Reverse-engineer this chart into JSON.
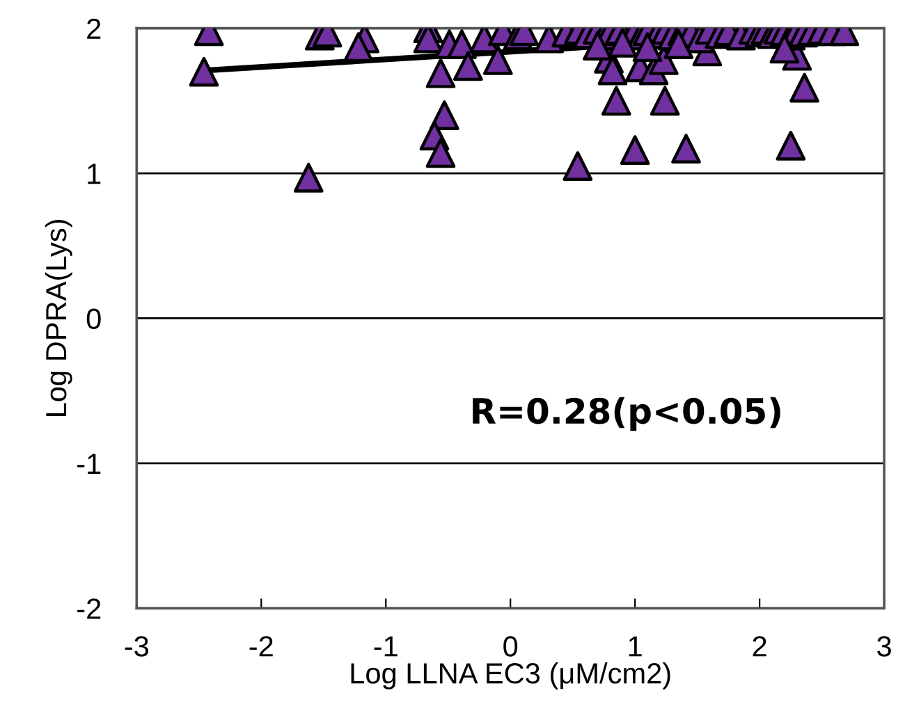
{
  "chart_data": {
    "type": "scatter",
    "xlabel": "Log LLNA EC3 (μM/cm2)",
    "ylabel": "Log DPRA(Lys)",
    "xlim": [
      -3,
      3
    ],
    "ylim": [
      -2,
      2
    ],
    "xticks": [
      -3,
      -2,
      -1,
      0,
      1,
      2,
      3
    ],
    "yticks": [
      -2,
      -1,
      0,
      1,
      2
    ],
    "grid": "y",
    "annotations": [
      "R=0.28(p<0.05)"
    ],
    "series": [
      {
        "color": "#7030a0",
        "marker": "triangle",
        "x": [
          -2.42,
          -2.46,
          -1.53,
          -1.47,
          -1.17,
          -1.22,
          -1.62,
          -0.66,
          -0.66,
          -0.49,
          -0.56,
          -0.53,
          -0.61,
          -0.56,
          -0.39,
          -0.34,
          -0.21,
          -0.1,
          -0.06,
          0.06,
          0.11,
          0.31,
          0.79,
          0.82,
          1.04,
          1.15,
          1.23,
          0.85,
          1.24,
          0.54,
          1.0,
          1.41,
          2.25,
          2.36,
          2.3,
          1.58,
          0.45,
          0.55,
          0.62,
          0.7,
          0.75,
          0.8,
          0.88,
          1.0,
          1.05,
          1.1,
          1.18,
          1.25,
          1.3,
          1.38,
          1.45,
          1.52,
          1.6,
          1.68,
          1.75,
          1.85,
          1.95,
          2.0,
          2.05,
          2.1,
          2.15,
          2.2,
          2.25,
          2.3,
          2.35,
          2.42,
          2.5,
          2.58,
          2.68,
          0.7,
          0.9,
          1.1,
          1.35,
          2.2
        ],
        "values": [
          1.98,
          1.7,
          1.95,
          1.97,
          1.93,
          1.87,
          0.97,
          2.0,
          1.93,
          1.89,
          1.69,
          1.4,
          1.26,
          1.14,
          1.89,
          1.74,
          1.93,
          1.78,
          1.98,
          1.95,
          1.98,
          1.93,
          1.79,
          1.71,
          1.73,
          1.71,
          1.78,
          1.5,
          1.5,
          1.05,
          1.16,
          1.17,
          1.19,
          1.59,
          1.81,
          1.84,
          1.97,
          1.99,
          1.96,
          1.99,
          1.95,
          1.98,
          1.99,
          1.99,
          1.95,
          1.98,
          1.96,
          1.99,
          1.95,
          1.98,
          1.97,
          1.93,
          1.99,
          1.96,
          1.98,
          1.95,
          1.99,
          1.97,
          1.99,
          1.96,
          1.99,
          1.98,
          1.95,
          1.99,
          1.97,
          1.98,
          1.99,
          1.98,
          1.98,
          1.88,
          1.9,
          1.87,
          1.89,
          1.86
        ]
      },
      {
        "type": "line",
        "color": "#000000",
        "x": [
          -2.44,
          2.68
        ],
        "values": [
          1.71,
          1.98
        ]
      }
    ]
  }
}
